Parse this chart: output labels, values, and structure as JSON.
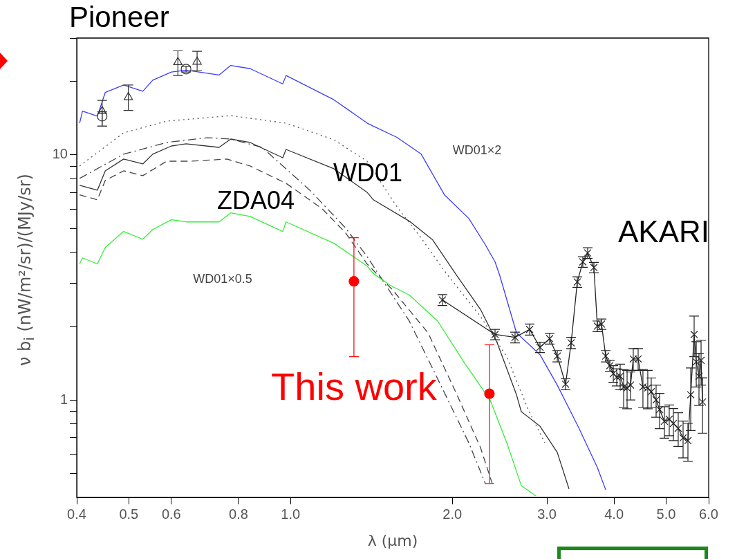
{
  "chart_data": {
    "type": "line",
    "title": "Pioneer",
    "xlabel": "λ (μm)",
    "ylabel": "ν b$_{i}$ (nW/m²/sr)/(MJy/sr)",
    "log": "xy",
    "grid": false,
    "legend": false,
    "xlim": [
      0.4,
      6.0
    ],
    "xticks": [
      0.4,
      0.5,
      0.6,
      0.8,
      {
        "value": 1,
        "label": "1.0"
      },
      {
        "value": 2,
        "label": "2.0"
      },
      {
        "value": 3,
        "label": "3.0"
      },
      {
        "value": 4,
        "label": "4.0"
      },
      {
        "value": 5,
        "label": "5.0"
      },
      {
        "value": 6,
        "label": "6.0"
      }
    ],
    "ylim": [
      0.4,
      30
    ],
    "yticks": [
      {
        "value": 0.5,
        "label": null
      },
      {
        "value": 0.6,
        "label": null
      },
      {
        "value": 0.7,
        "label": null
      },
      {
        "value": 0.8,
        "label": null
      },
      {
        "value": 0.9,
        "label": null
      },
      1,
      {
        "value": 2,
        "label": null
      },
      {
        "value": 3,
        "label": null
      },
      {
        "value": 4,
        "label": null
      },
      {
        "value": 5,
        "label": null
      },
      {
        "value": 6,
        "label": null
      },
      {
        "value": 7,
        "label": null
      },
      {
        "value": 8,
        "label": null
      },
      {
        "value": 9,
        "label": null
      },
      10,
      {
        "value": 20,
        "label": null
      },
      {
        "value": 30,
        "label": null
      }
    ],
    "series": [
      {
        "color": "#3c3cff",
        "line_style": "solid",
        "marker": "none",
        "x": [
          0.405,
          0.41,
          0.437,
          0.452,
          0.489,
          0.531,
          0.554,
          0.6,
          0.639,
          0.736,
          0.774,
          0.841,
          0.967,
          0.981,
          1.204,
          1.388,
          1.426,
          1.577,
          1.749,
          1.934,
          2.146,
          2.304,
          2.402,
          2.452,
          2.633,
          2.912,
          3.136,
          3.438,
          3.724,
          3.859
        ],
        "values": [
          13.5,
          15.1,
          14.4,
          18.0,
          19.3,
          18.2,
          20.2,
          21.8,
          22.2,
          21.2,
          23.2,
          22.5,
          19.5,
          21.1,
          16.8,
          13.5,
          13.1,
          11.8,
          10.1,
          6.87,
          5.51,
          4.3,
          3.66,
          3.21,
          1.88,
          1.53,
          1.15,
          0.77,
          0.53,
          0.43
        ]
      },
      {
        "color": "#33ee33",
        "line_style": "solid",
        "marker": "none",
        "x": [
          0.405,
          0.41,
          0.437,
          0.452,
          0.489,
          0.531,
          0.554,
          0.6,
          0.639,
          0.736,
          0.774,
          0.841,
          0.967,
          0.981,
          1.204,
          1.388,
          1.426,
          1.531,
          1.664,
          1.878,
          2.101,
          2.351,
          2.526,
          2.688,
          2.86
        ],
        "values": [
          3.59,
          3.8,
          3.59,
          4.19,
          4.87,
          4.53,
          4.96,
          5.44,
          5.33,
          5.33,
          5.8,
          5.61,
          4.87,
          5.33,
          4.36,
          3.52,
          3.28,
          2.94,
          2.68,
          2.1,
          1.43,
          1.0,
          0.669,
          0.447,
          0.406
        ]
      },
      {
        "color": "#333333",
        "line_style": "solid",
        "marker": "none",
        "x": [
          0.405,
          0.437,
          0.452,
          0.489,
          0.531,
          0.554,
          0.6,
          0.639,
          0.736,
          0.774,
          0.841,
          0.967,
          0.981,
          1.204,
          1.388,
          1.426,
          1.663,
          1.839,
          2.04,
          2.257,
          2.424,
          2.633,
          2.688,
          2.912,
          3.136,
          3.298
        ],
        "values": [
          7.52,
          7.18,
          8.61,
          9.62,
          9.19,
          10.07,
          10.88,
          11.1,
          10.74,
          11.61,
          11.24,
          9.74,
          10.53,
          8.78,
          7.04,
          6.56,
          5.37,
          4.5,
          3.21,
          2.34,
          1.71,
          1.05,
          0.896,
          0.781,
          0.611,
          0.433
        ]
      },
      {
        "color": "#555555",
        "line_style": "dotted",
        "marker": "none",
        "x": [
          0.405,
          0.489,
          0.588,
          0.774,
          0.981,
          1.204,
          1.388,
          1.577,
          1.749,
          1.934,
          2.257,
          2.526,
          2.769,
          2.973
        ],
        "values": [
          9.01,
          12.31,
          13.74,
          14.47,
          13.48,
          11.53,
          9.43,
          6.15,
          4.59,
          3.36,
          2.19,
          1.5,
          0.913,
          0.669
        ]
      },
      {
        "color": "#444444",
        "line_style": "dashdot",
        "marker": "none",
        "x": [
          0.405,
          0.489,
          0.588,
          0.7,
          0.774,
          0.885,
          1.086,
          1.266,
          1.388,
          1.663,
          1.934,
          2.146,
          2.304
        ],
        "values": [
          8.02,
          10.07,
          11.24,
          11.76,
          11.61,
          10.74,
          7.18,
          5.03,
          3.85,
          2.1,
          1.07,
          0.669,
          0.456
        ]
      },
      {
        "color": "#444444",
        "line_style": "dashed",
        "marker": "none",
        "x": [
          0.405,
          0.437,
          0.452,
          0.489,
          0.531,
          0.588,
          0.652,
          0.761,
          0.841,
          0.981,
          1.145,
          1.266,
          1.388,
          1.549,
          1.802,
          2.04,
          2.257,
          2.373
        ],
        "values": [
          6.87,
          6.56,
          7.87,
          8.61,
          8.23,
          9.43,
          9.43,
          9.62,
          9.01,
          7.66,
          6.03,
          4.81,
          3.59,
          2.81,
          1.88,
          1.05,
          0.639,
          0.456
        ]
      },
      {
        "type": "scatter",
        "color": "#333333",
        "marker": "triangle",
        "x": [
          0.446,
          0.499,
          0.617,
          0.67
        ],
        "values": [
          15.1,
          17.2,
          23.9,
          24.0
        ],
        "errors": [
          [
            13.1,
            16.7
          ],
          [
            15.2,
            19.3
          ],
          [
            21.1,
            26.6
          ],
          [
            22.1,
            26.5
          ]
        ]
      },
      {
        "type": "scatter",
        "color": "#333333",
        "marker": "circle",
        "x": [
          0.446,
          0.639
        ],
        "values": [
          14.4,
          22.4
        ],
        "errors": [
          [
            13.1,
            15.0
          ],
          [
            21.8,
            23.0
          ]
        ]
      },
      {
        "color": "#222222",
        "line_style": "solid",
        "marker": "cross",
        "x": [
          1.917,
          2.402,
          2.617,
          2.786,
          2.912,
          3.035,
          3.136,
          3.25,
          3.328,
          3.417,
          3.499,
          3.572,
          3.669,
          3.724,
          3.791,
          3.859,
          3.928,
          3.987,
          4.046,
          4.106,
          4.168,
          4.23,
          4.293,
          4.343,
          4.435,
          4.527,
          4.622,
          4.691,
          4.79,
          4.862,
          4.963,
          5.067,
          5.158,
          5.266,
          5.377,
          5.49,
          5.556,
          5.638,
          5.689,
          5.756,
          5.808,
          5.843
        ],
        "values": [
          2.56,
          1.85,
          1.8,
          1.94,
          1.64,
          1.78,
          1.51,
          1.16,
          1.71,
          3.03,
          3.66,
          3.98,
          3.47,
          2.0,
          2.04,
          1.51,
          1.38,
          1.28,
          1.24,
          1.25,
          1.13,
          1.12,
          1.15,
          1.47,
          1.47,
          1.13,
          1.12,
          1.08,
          1.0,
          0.913,
          0.818,
          0.834,
          0.802,
          0.766,
          0.7,
          0.682,
          1.05,
          1.85,
          1.43,
          1.25,
          1.45,
          0.981
        ],
        "errors": [
          0.13,
          0.09,
          0.09,
          0.1,
          0.08,
          0.09,
          0.08,
          0.06,
          0.09,
          0.15,
          0.18,
          0.2,
          0.17,
          0.1,
          0.1,
          0.08,
          0.07,
          0.1,
          0.1,
          0.15,
          0.2,
          0.2,
          0.15,
          0.15,
          0.15,
          0.2,
          0.2,
          0.15,
          0.15,
          0.15,
          0.12,
          0.12,
          0.12,
          0.12,
          0.12,
          0.12,
          0.3,
          0.35,
          0.3,
          0.3,
          0.3,
          0.25
        ]
      },
      {
        "type": "scatter",
        "name": "This work",
        "color": "#ff0000",
        "marker": "circle",
        "x": [
          1.312,
          2.345
        ],
        "values": [
          3.05,
          1.06
        ],
        "errors": [
          [
            1.5,
            4.59
          ],
          [
            0.456,
            1.68
          ]
        ]
      }
    ],
    "annotations": [
      "WD01",
      "ZDA04",
      "AKARI",
      "WD01×2",
      "WD01×0.5"
    ]
  }
}
